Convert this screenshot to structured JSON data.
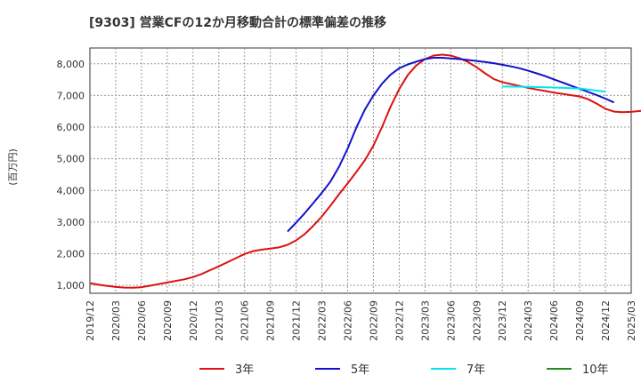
{
  "chart_data": {
    "type": "line",
    "title": "[9303]  営業CFの12か月移動合計の標準偏差の推移",
    "ylabel": "(百万円)",
    "xlabel": "",
    "ylim": [
      750,
      8500
    ],
    "yticks": [
      1000,
      2000,
      3000,
      4000,
      5000,
      6000,
      7000,
      8000
    ],
    "ytick_labels": [
      "1,000",
      "2,000",
      "3,000",
      "4,000",
      "5,000",
      "6,000",
      "7,000",
      "8,000"
    ],
    "xlim": [
      "2019-12",
      "2025-03"
    ],
    "x_ticks": [
      "2019/12",
      "2020/03",
      "2020/06",
      "2020/09",
      "2020/12",
      "2021/03",
      "2021/06",
      "2021/09",
      "2021/12",
      "2022/03",
      "2022/06",
      "2022/09",
      "2022/12",
      "2023/03",
      "2023/06",
      "2023/09",
      "2023/12",
      "2024/03",
      "2024/06",
      "2024/09",
      "2024/12",
      "2025/03"
    ],
    "grid": true,
    "legend_position": "bottom",
    "series": [
      {
        "name": "3年",
        "color": "#dd1111",
        "points": [
          [
            "2019-12",
            1070
          ],
          [
            "2020-01",
            1020
          ],
          [
            "2020-02",
            980
          ],
          [
            "2020-03",
            950
          ],
          [
            "2020-04",
            930
          ],
          [
            "2020-05",
            925
          ],
          [
            "2020-06",
            940
          ],
          [
            "2020-07",
            990
          ],
          [
            "2020-08",
            1040
          ],
          [
            "2020-09",
            1090
          ],
          [
            "2020-10",
            1140
          ],
          [
            "2020-11",
            1190
          ],
          [
            "2020-12",
            1260
          ],
          [
            "2021-01",
            1360
          ],
          [
            "2021-02",
            1480
          ],
          [
            "2021-03",
            1600
          ],
          [
            "2021-04",
            1730
          ],
          [
            "2021-05",
            1860
          ],
          [
            "2021-06",
            1990
          ],
          [
            "2021-07",
            2080
          ],
          [
            "2021-08",
            2130
          ],
          [
            "2021-09",
            2160
          ],
          [
            "2021-10",
            2200
          ],
          [
            "2021-11",
            2280
          ],
          [
            "2021-12",
            2420
          ],
          [
            "2022-01",
            2620
          ],
          [
            "2022-02",
            2880
          ],
          [
            "2022-03",
            3180
          ],
          [
            "2022-04",
            3520
          ],
          [
            "2022-05",
            3880
          ],
          [
            "2022-06",
            4220
          ],
          [
            "2022-07",
            4580
          ],
          [
            "2022-08",
            4950
          ],
          [
            "2022-09",
            5420
          ],
          [
            "2022-10",
            6000
          ],
          [
            "2022-11",
            6650
          ],
          [
            "2022-12",
            7200
          ],
          [
            "2023-01",
            7650
          ],
          [
            "2023-02",
            7950
          ],
          [
            "2023-03",
            8150
          ],
          [
            "2023-04",
            8260
          ],
          [
            "2023-05",
            8290
          ],
          [
            "2023-06",
            8260
          ],
          [
            "2023-07",
            8180
          ],
          [
            "2023-08",
            8060
          ],
          [
            "2023-09",
            7890
          ],
          [
            "2023-10",
            7700
          ],
          [
            "2023-11",
            7520
          ],
          [
            "2023-12",
            7420
          ],
          [
            "2024-01",
            7360
          ],
          [
            "2024-02",
            7300
          ],
          [
            "2024-03",
            7240
          ],
          [
            "2024-04",
            7190
          ],
          [
            "2024-05",
            7140
          ],
          [
            "2024-06",
            7090
          ],
          [
            "2024-07",
            7050
          ],
          [
            "2024-08",
            7010
          ],
          [
            "2024-09",
            6970
          ],
          [
            "2024-10",
            6880
          ],
          [
            "2024-11",
            6740
          ],
          [
            "2024-12",
            6580
          ],
          [
            "2025-01",
            6490
          ],
          [
            "2025-02",
            6470
          ],
          [
            "2025-03",
            6480
          ],
          [
            "2025-04",
            6510
          ],
          [
            "2025-05",
            6540
          ],
          [
            "2025-06",
            6570
          ]
        ]
      },
      {
        "name": "5年",
        "color": "#1111cc",
        "points": [
          [
            "2021-11",
            2700
          ],
          [
            "2021-12",
            2980
          ],
          [
            "2022-01",
            3280
          ],
          [
            "2022-02",
            3600
          ],
          [
            "2022-03",
            3930
          ],
          [
            "2022-04",
            4280
          ],
          [
            "2022-05",
            4750
          ],
          [
            "2022-06",
            5320
          ],
          [
            "2022-07",
            5980
          ],
          [
            "2022-08",
            6550
          ],
          [
            "2022-09",
            7000
          ],
          [
            "2022-10",
            7370
          ],
          [
            "2022-11",
            7660
          ],
          [
            "2022-12",
            7860
          ],
          [
            "2023-01",
            7980
          ],
          [
            "2023-02",
            8070
          ],
          [
            "2023-03",
            8150
          ],
          [
            "2023-04",
            8190
          ],
          [
            "2023-05",
            8190
          ],
          [
            "2023-06",
            8170
          ],
          [
            "2023-07",
            8150
          ],
          [
            "2023-08",
            8120
          ],
          [
            "2023-09",
            8090
          ],
          [
            "2023-10",
            8060
          ],
          [
            "2023-11",
            8020
          ],
          [
            "2023-12",
            7970
          ],
          [
            "2024-01",
            7920
          ],
          [
            "2024-02",
            7860
          ],
          [
            "2024-03",
            7780
          ],
          [
            "2024-04",
            7700
          ],
          [
            "2024-05",
            7610
          ],
          [
            "2024-06",
            7510
          ],
          [
            "2024-07",
            7410
          ],
          [
            "2024-08",
            7310
          ],
          [
            "2024-09",
            7210
          ],
          [
            "2024-10",
            7110
          ],
          [
            "2024-11",
            7010
          ],
          [
            "2024-12",
            6900
          ],
          [
            "2025-01",
            6780
          ]
        ]
      },
      {
        "name": "7年",
        "color": "#00e5ee",
        "points": [
          [
            "2023-12",
            7280
          ],
          [
            "2024-03",
            7270
          ],
          [
            "2024-06",
            7250
          ],
          [
            "2024-09",
            7220
          ],
          [
            "2024-12",
            7120
          ]
        ]
      },
      {
        "name": "10年",
        "color": "#228b22",
        "points": []
      }
    ]
  }
}
